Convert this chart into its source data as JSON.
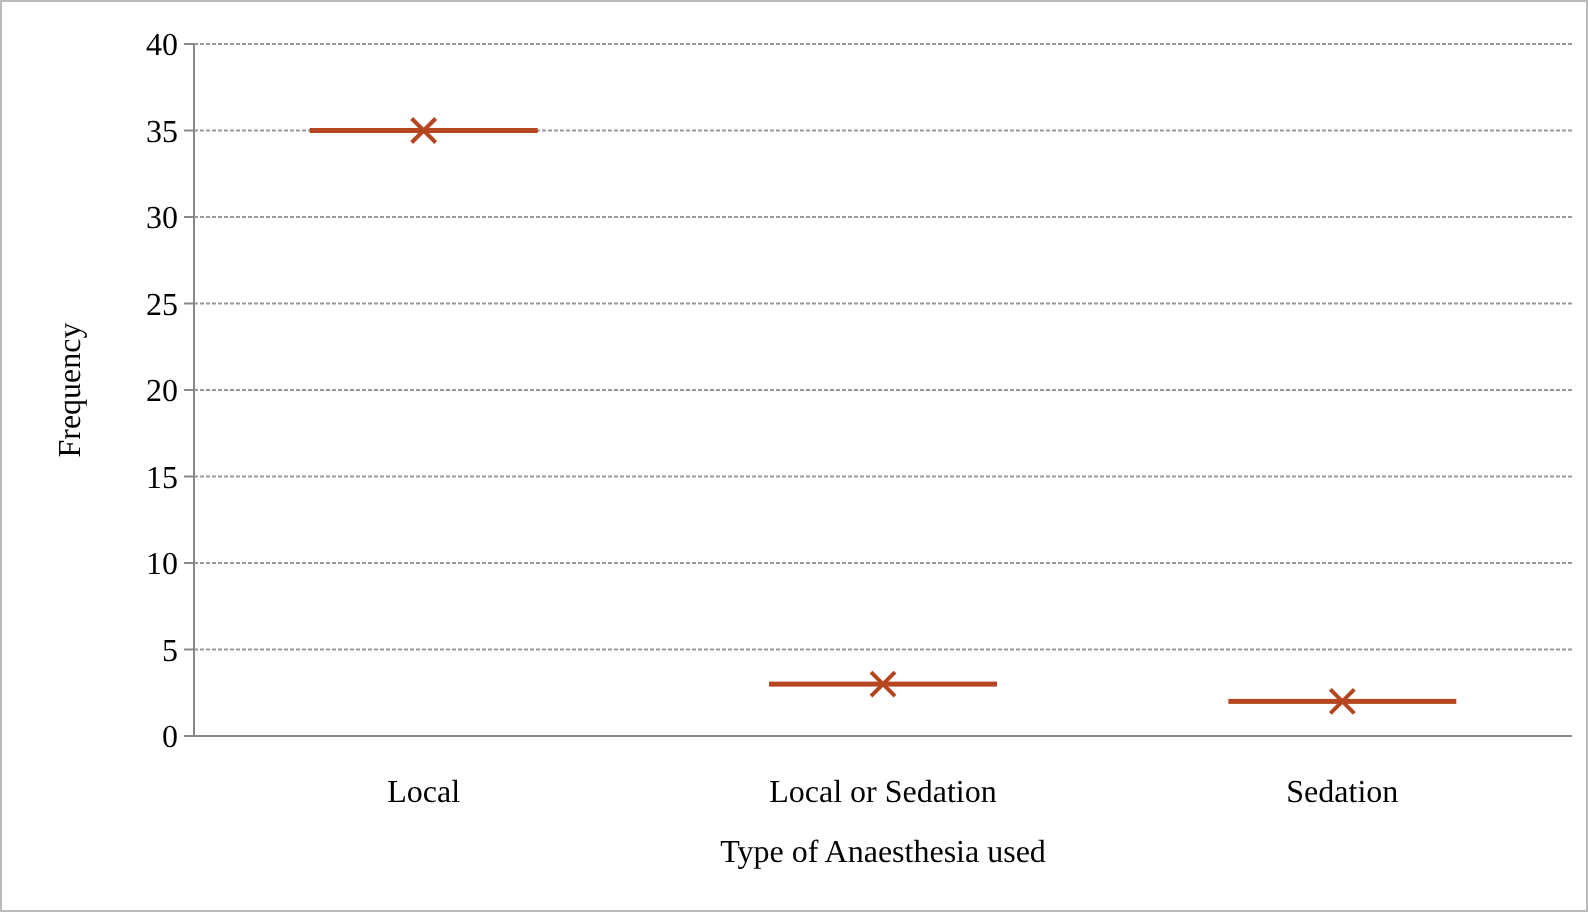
{
  "chart_data": {
    "type": "scatter",
    "xlabel": "Type of Anaesthesia used",
    "ylabel": "Frequency",
    "categories": [
      "Local",
      "Local or Sedation",
      "Sedation"
    ],
    "series": [
      {
        "color": "#b5461f",
        "values": [
          35,
          3,
          2
        ]
      }
    ],
    "ylim": [
      0,
      40
    ],
    "yticks": [
      0,
      5,
      10,
      15,
      20,
      25,
      30,
      35,
      40
    ],
    "grid": "y",
    "marker": "cross"
  }
}
